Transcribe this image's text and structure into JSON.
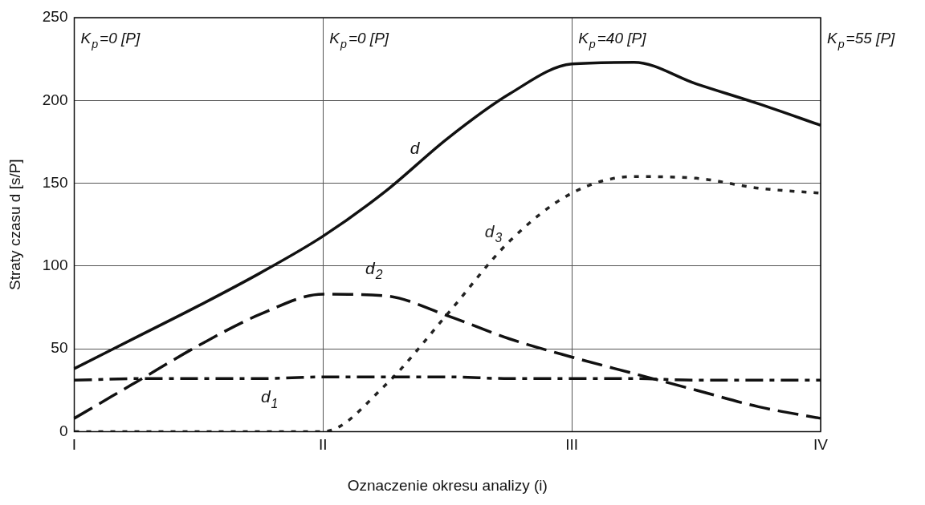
{
  "chart_data": {
    "type": "line",
    "xlabel": "Oznaczenie okresu analizy (i)",
    "ylabel": "Straty czasu d [s/P]",
    "categories": [
      "I",
      null,
      null,
      null,
      "II",
      null,
      null,
      null,
      "III",
      null,
      null,
      null,
      "IV"
    ],
    "ylim": [
      0,
      250
    ],
    "yticks": [
      0,
      50,
      100,
      150,
      200,
      250
    ],
    "grid": true,
    "legend": false,
    "marker": "none",
    "series": [
      {
        "name": "d",
        "color": "#111111",
        "line_style": "solid",
        "values": [
          38,
          57,
          76,
          96,
          118,
          145,
          177,
          204,
          222,
          223,
          210,
          198,
          185
        ]
      },
      {
        "name": "d$_{1}$",
        "color": "#111111",
        "line_style": "dashdot",
        "values": [
          31,
          32,
          32,
          32,
          33,
          33,
          33,
          32,
          32,
          32,
          31,
          31,
          31
        ]
      },
      {
        "name": "d$_{2}$",
        "color": "#111111",
        "line_style": "dashed",
        "values": [
          8,
          30,
          52,
          71,
          83,
          82,
          70,
          56,
          45,
          35,
          25,
          15,
          8
        ]
      },
      {
        "name": "d$_{3}$",
        "color": "#222222",
        "line_style": "dotted",
        "values": [
          0,
          0,
          0,
          0,
          0,
          28,
          71,
          115,
          144,
          154,
          153,
          147,
          144
        ]
      }
    ],
    "annotations": [
      "K$_{p}$=0 [P]",
      "K$_{p}$=0 [P]",
      "K$_{p}$=40 [P]",
      "K$_{p}$=55 [P]"
    ]
  }
}
